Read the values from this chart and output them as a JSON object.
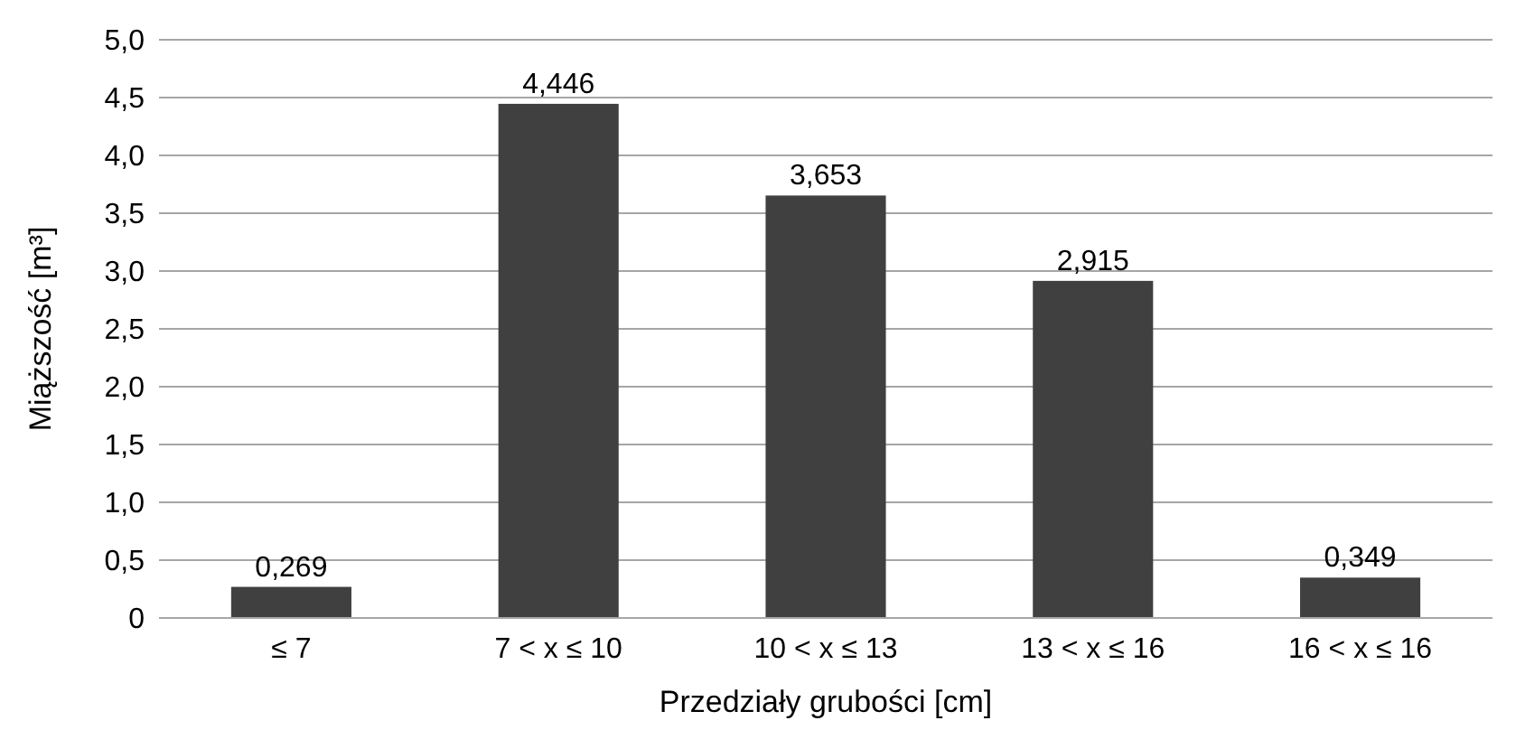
{
  "chart_data": {
    "type": "bar",
    "xlabel": "Przedziały grubości [cm]",
    "ylabel": "Miąższość [m³]",
    "categories": [
      "≤ 7",
      "7 < x ≤ 10",
      "10 < x ≤ 13",
      "13 < x ≤ 16",
      "16 < x ≤ 16"
    ],
    "values": [
      0.269,
      4.446,
      3.653,
      2.915,
      0.349
    ],
    "value_labels": [
      "0,269",
      "4,446",
      "3,653",
      "2,915",
      "0,349"
    ],
    "color": "#404040",
    "ylim": [
      0,
      5
    ],
    "yticks": [
      0,
      {
        "value": 0.5,
        "label": "0,5"
      },
      {
        "value": 1,
        "label": "1,0"
      },
      {
        "value": 1.5,
        "label": "1,5"
      },
      {
        "value": 2,
        "label": "2,0"
      },
      {
        "value": 2.5,
        "label": "2,5"
      },
      {
        "value": 3,
        "label": "3,0"
      },
      {
        "value": 3.5,
        "label": "3,5"
      },
      {
        "value": 4,
        "label": "4,0"
      },
      {
        "value": 4.5,
        "label": "4,5"
      },
      {
        "value": 5,
        "label": "5,0"
      }
    ],
    "grid": true
  }
}
